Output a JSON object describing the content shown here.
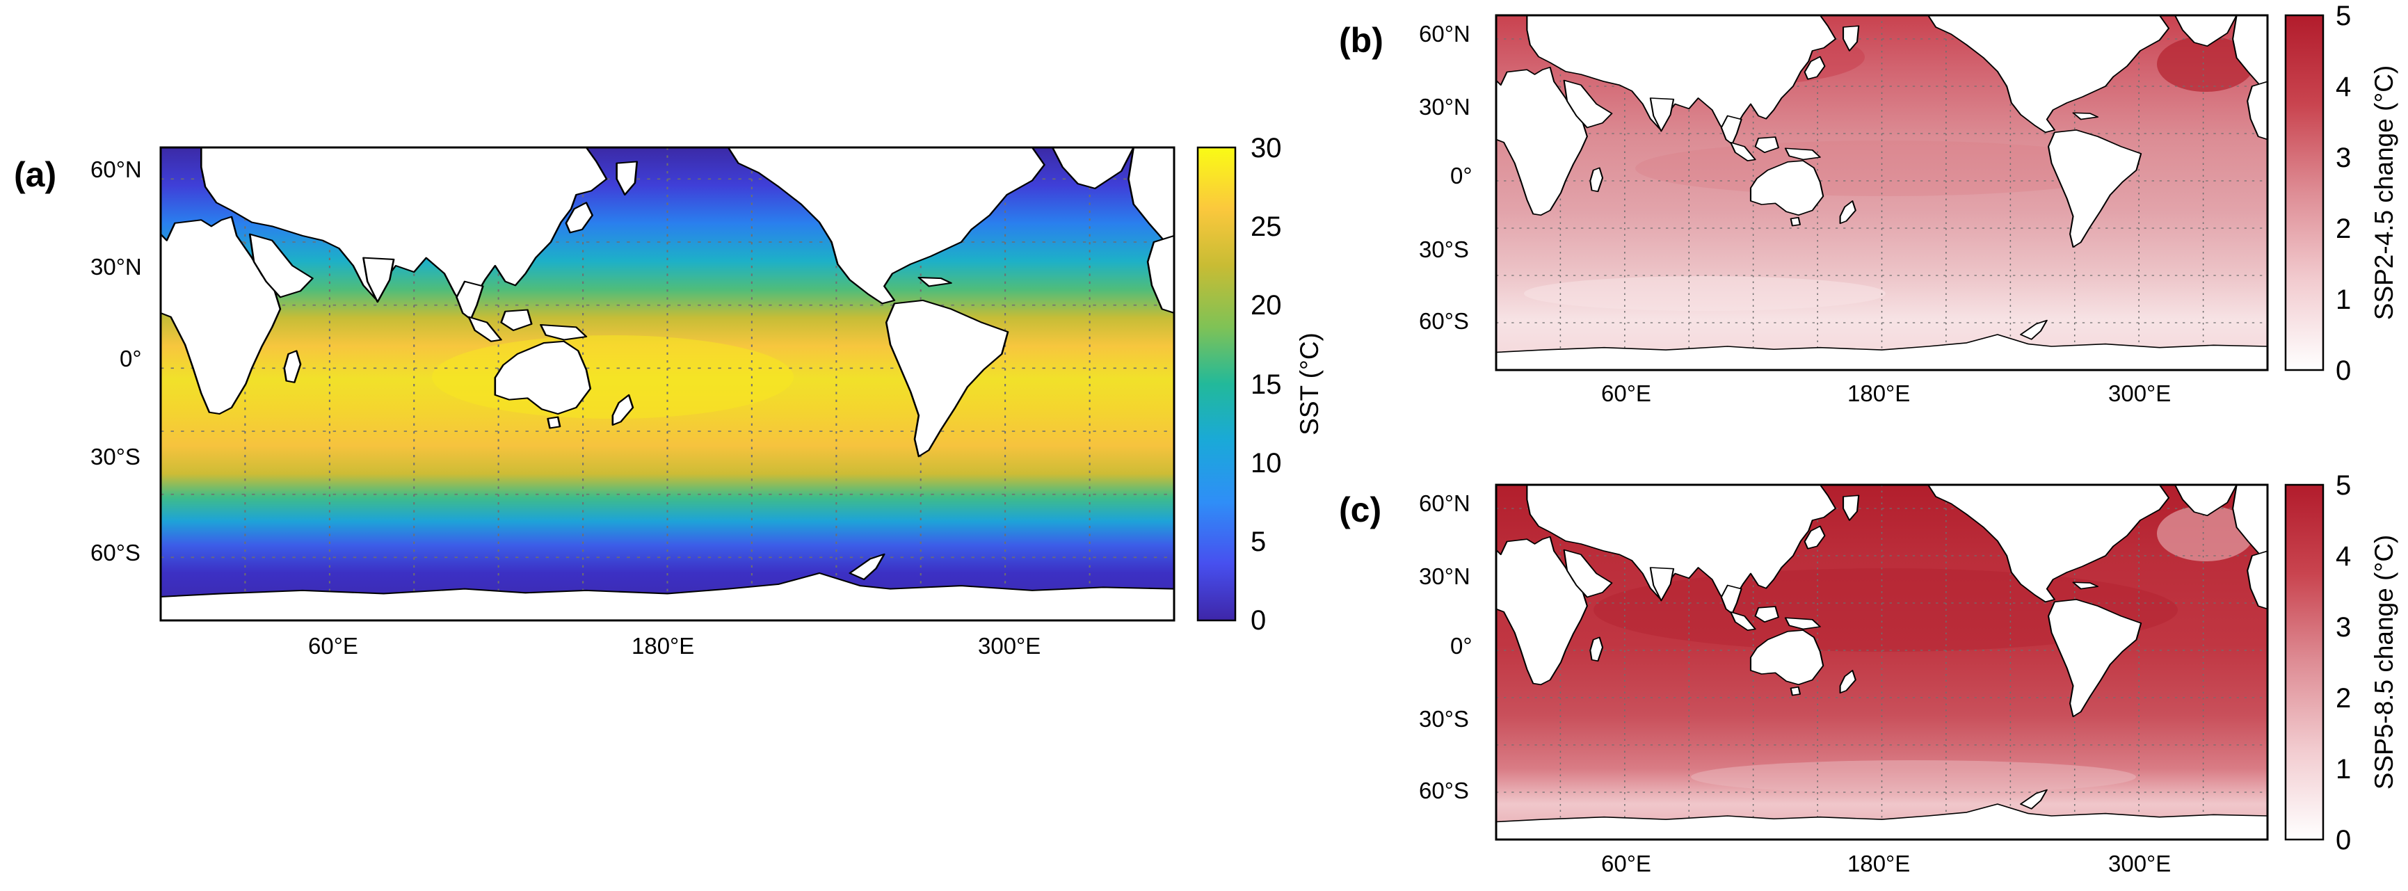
{
  "panels": [
    {
      "id": "a",
      "label": "(a)",
      "lat_ticks": [
        "60°N",
        "30°N",
        "0°",
        "30°S",
        "60°S"
      ],
      "lon_ticks": [
        "60°E",
        "180°E",
        "300°E"
      ],
      "colorbar": {
        "label": "SST (°C)",
        "ticks": [
          "30",
          "25",
          "20",
          "15",
          "10",
          "5",
          "0"
        ],
        "range": [
          0,
          30
        ],
        "colormap": "parula",
        "colors": [
          "#3e26a8",
          "#4750ef",
          "#2f8ef7",
          "#1aa9d8",
          "#22b99a",
          "#7fc256",
          "#c8bc34",
          "#fbc83d",
          "#f9fb15"
        ]
      }
    },
    {
      "id": "b",
      "label": "(b)",
      "lat_ticks": [
        "60°N",
        "30°N",
        "0°",
        "30°S",
        "60°S"
      ],
      "lon_ticks": [
        "60°E",
        "180°E",
        "300°E"
      ],
      "colorbar": {
        "label": "SSP2-4.5 change (°C)",
        "ticks": [
          "5",
          "4",
          "3",
          "2",
          "1",
          "0"
        ],
        "range": [
          0,
          5
        ],
        "colormap": "white-to-red",
        "colors": [
          "#ffffff",
          "#f2ccd0",
          "#de8d95",
          "#c9444f",
          "#b21c2c"
        ]
      }
    },
    {
      "id": "c",
      "label": "(c)",
      "lat_ticks": [
        "60°N",
        "30°N",
        "0°",
        "30°S",
        "60°S"
      ],
      "lon_ticks": [
        "60°E",
        "180°E",
        "300°E"
      ],
      "colorbar": {
        "label": "SSP5-8.5 change (°C)",
        "ticks": [
          "5",
          "4",
          "3",
          "2",
          "1",
          "0"
        ],
        "range": [
          0,
          5
        ],
        "colormap": "white-to-red",
        "colors": [
          "#ffffff",
          "#f2ccd0",
          "#de8d95",
          "#c9444f",
          "#b21c2c"
        ]
      }
    }
  ],
  "colors": {
    "land": "#ffffff",
    "coast": "#000000",
    "grid": "#777777",
    "red_high": "#b8232f",
    "red_mid": "#d9737d",
    "red_low": "#f6dbde"
  }
}
